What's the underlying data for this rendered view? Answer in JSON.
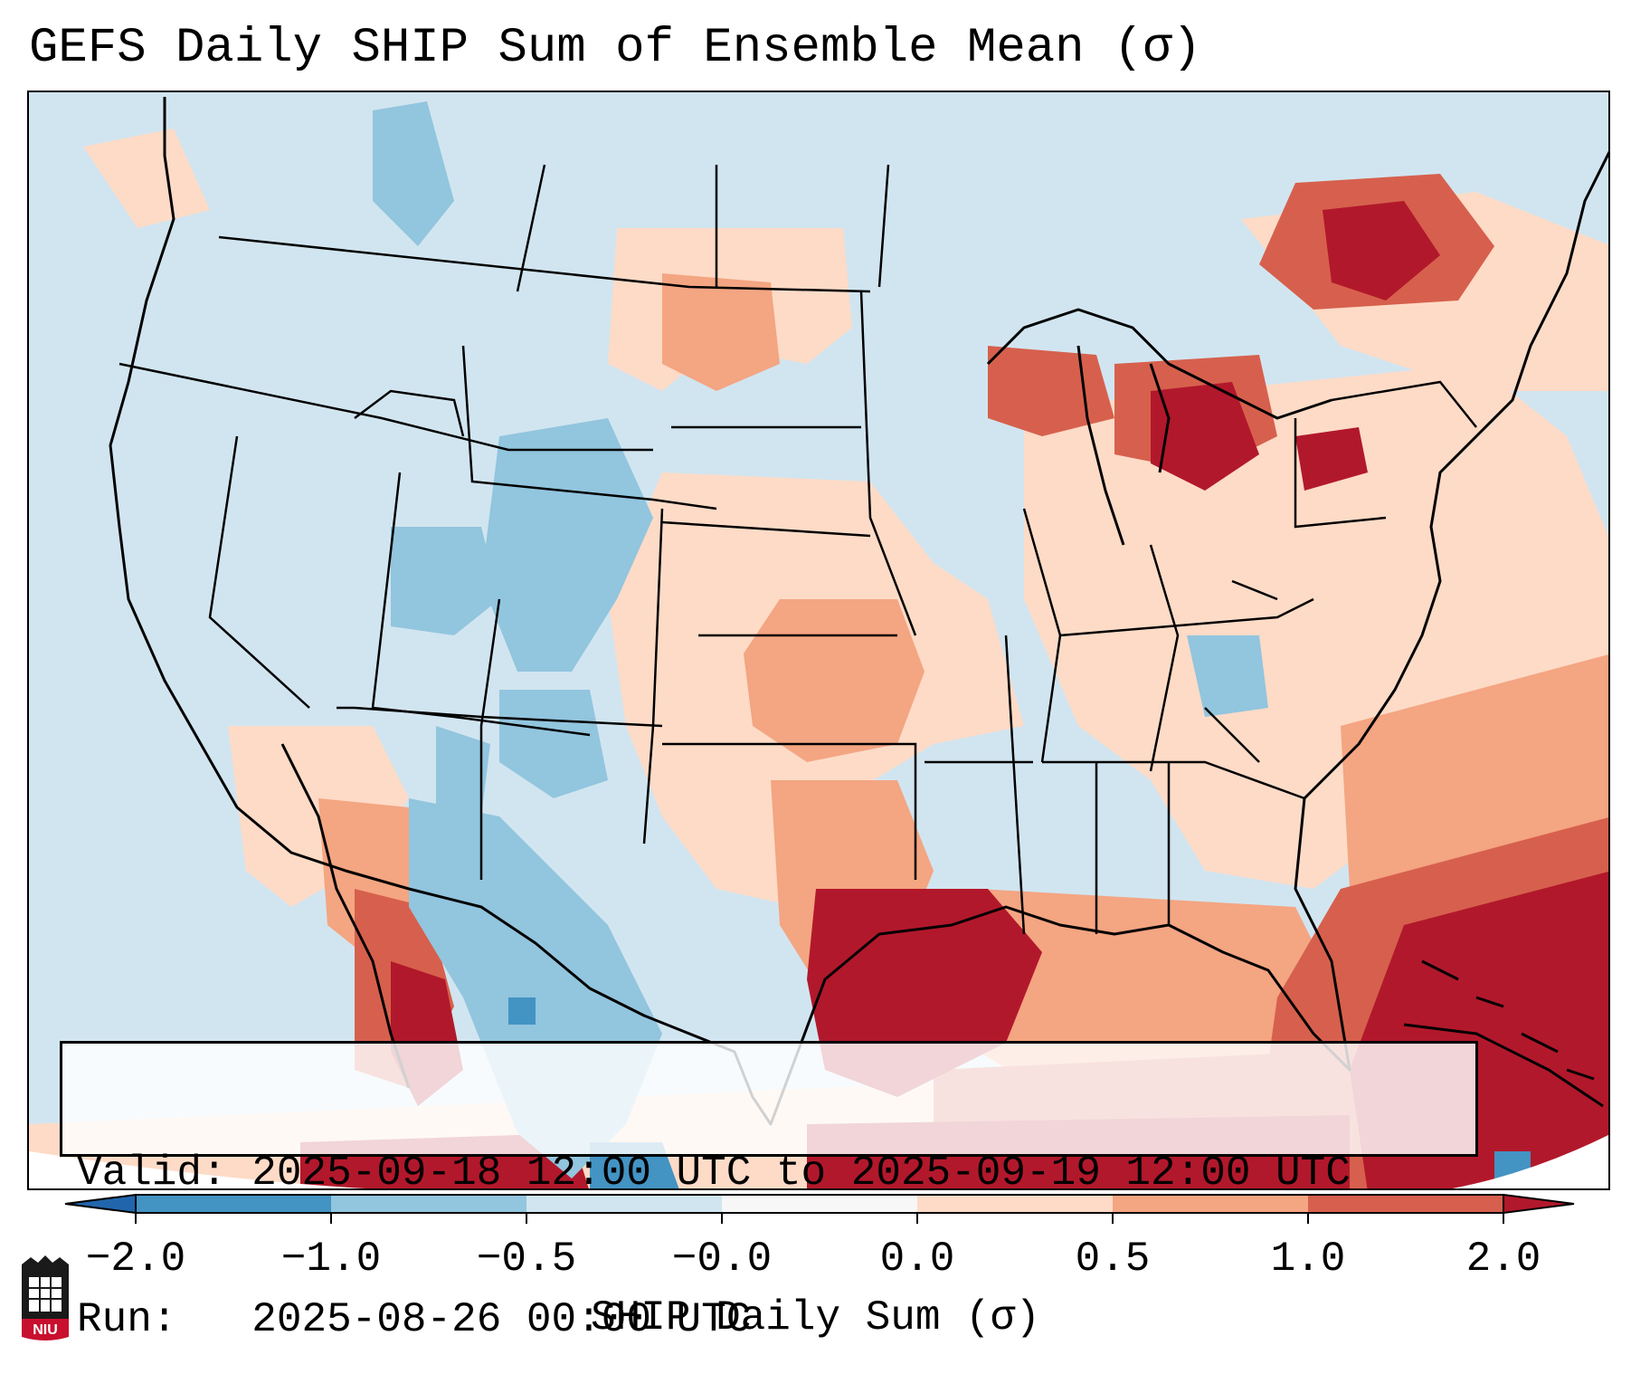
{
  "title": "GEFS Daily SHIP Sum of Ensemble Mean (σ)",
  "info": {
    "valid_label": "Valid:",
    "valid_value": "2025-09-18 12:00 UTC to 2025-09-19 12:00 UTC",
    "run_label": "Run:",
    "run_value": "2025-08-26 00:00 UTC"
  },
  "colorbar": {
    "label": "SHIP Daily Sum (σ)",
    "ticks": [
      "−2.0",
      "−1.0",
      "−0.5",
      "−0.0",
      "0.0",
      "0.5",
      "1.0",
      "2.0"
    ],
    "colors": [
      "#4393c3",
      "#92c5de",
      "#d1e5f0",
      "#f7f7f7",
      "#fddbc7",
      "#f4a582",
      "#d6604d",
      "#b2182b"
    ],
    "under_color": "#2166ac",
    "over_color": "#b2182b"
  },
  "logo": {
    "text": "NIU",
    "name": "niu-logo"
  },
  "map": {
    "region": "Contiguous United States",
    "background_color": "#d1e5f0",
    "highlight_areas": [
      {
        "name": "gulf-of-mexico",
        "level": "2.0"
      },
      {
        "name": "western-atlantic",
        "level": "2.0"
      },
      {
        "name": "great-lakes",
        "level": "2.0"
      },
      {
        "name": "southwest-desert",
        "level": "-1.0"
      },
      {
        "name": "southern-plains",
        "level": "0.5"
      }
    ]
  }
}
